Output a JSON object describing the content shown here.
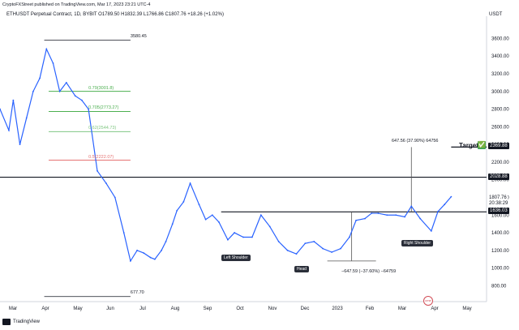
{
  "header": {
    "publisher_line": "CryptoFXStreet published on TradingView.com, Mar 17, 2023 23:21 UTC-4",
    "symbol_line": "ETHUSDT Perpetual Contract, 1D, BYBIT  O1789.50  H1832.39  L1766.86  C1807.76  +18.26 (+1.02%)",
    "currency": "USDT"
  },
  "footer": {
    "brand": "TradingView"
  },
  "chart_data": {
    "type": "line",
    "title": "ETHUSDT Perpetual Contract, 1D, BYBIT",
    "x_ticks": [
      "Mar",
      "Apr",
      "May",
      "Jun",
      "Jul",
      "Aug",
      "Sep",
      "Oct",
      "Nov",
      "Dec",
      "2023",
      "Feb",
      "Mar",
      "Apr",
      "May"
    ],
    "y_ticks": [
      800,
      1000,
      1200,
      1400,
      1600,
      1800,
      2000,
      2200,
      2400,
      2600,
      2800,
      3000,
      3200,
      3400,
      3600
    ],
    "ylim": [
      620,
      3760
    ],
    "xlim": [
      0,
      440
    ],
    "grid": false,
    "series": [
      {
        "color": "#2962ff",
        "x": [
          0,
          8,
          12,
          18,
          24,
          30,
          36,
          42,
          48,
          54,
          60,
          68,
          74,
          80,
          88,
          96,
          104,
          112,
          118,
          124,
          130,
          136,
          140,
          146,
          150,
          156,
          160,
          166,
          172,
          180,
          186,
          192,
          198,
          206,
          212,
          220,
          228,
          236,
          244,
          252,
          260,
          268,
          276,
          284,
          292,
          300,
          308,
          316,
          322,
          330,
          336,
          342,
          350,
          358,
          366,
          372,
          380,
          390,
          396,
          402,
          408
        ],
        "values": [
          2800,
          2560,
          2900,
          2400,
          2700,
          3000,
          3150,
          3480,
          3320,
          3000,
          3100,
          2950,
          2900,
          2800,
          2100,
          1960,
          1800,
          1400,
          1080,
          1200,
          1170,
          1120,
          1100,
          1200,
          1300,
          1500,
          1650,
          1750,
          1960,
          1720,
          1550,
          1600,
          1520,
          1320,
          1400,
          1350,
          1350,
          1600,
          1470,
          1300,
          1200,
          1160,
          1280,
          1300,
          1220,
          1180,
          1220,
          1350,
          1540,
          1560,
          1620,
          1620,
          1600,
          1600,
          1580,
          1700,
          1560,
          1420,
          1640,
          1720,
          1807.76
        ]
      }
    ],
    "levels": [
      {
        "value": 3580,
        "label": "3580.45"
      },
      {
        "value": 677.7,
        "label": "677.70"
      },
      {
        "value": 2028.88,
        "label": "2028.88"
      },
      {
        "value": 1636.03,
        "label": "1636.03"
      },
      {
        "value": 2369.88,
        "label": "2369.88"
      }
    ],
    "fib_levels": [
      {
        "value": 3001.8,
        "label": "0.79(3001.8)",
        "color": "#4caf50"
      },
      {
        "value": 2773.27,
        "label": "0.705(2773.27)",
        "color": "#4caf50"
      },
      {
        "value": 2544.73,
        "label": "0.62(2544.73)",
        "color": "#81c784"
      },
      {
        "value": 2222.07,
        "label": "0.5(2222.07)",
        "color": "#e57373"
      }
    ],
    "current_price": "1807.76",
    "current_countdown": "20:38:29",
    "annotations": {
      "target": "Target",
      "target_check": "✅",
      "measure_up": "647.56 (37.90%) 64756",
      "measure_down": "−647.59 (−37.60%) −64759",
      "left_shoulder": "Left Shoulder",
      "head": "Head",
      "right_shoulder": "Right Shoulder"
    }
  }
}
